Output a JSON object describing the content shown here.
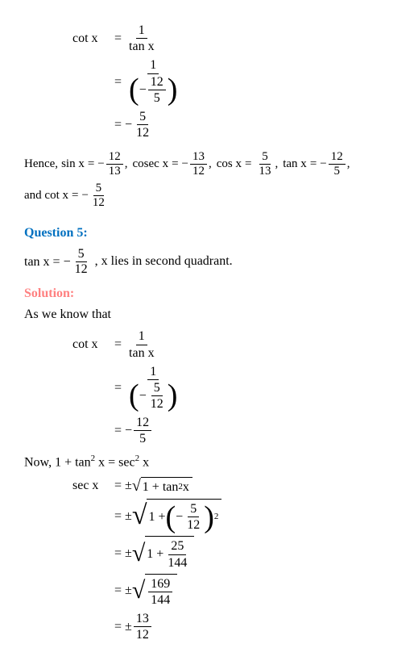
{
  "colors": {
    "text": "#000000",
    "question": "#0070c0",
    "solution": "#ff8080",
    "background": "#ffffff"
  },
  "fonts": {
    "body_family": "Times New Roman",
    "body_size_pt": 12,
    "heading_weight": "bold"
  },
  "block1": {
    "lhs": "cot x",
    "eq": "=",
    "rhs1_num": "1",
    "rhs1_den": "tan x",
    "rhs2_num": "1",
    "rhs2_den_inner_num": "12",
    "rhs2_den_inner_den": "5",
    "rhs2_den_neg": "−",
    "rhs3_neg": "−",
    "rhs3_num": "5",
    "rhs3_den": "12"
  },
  "hence": {
    "label": "Hence,",
    "items": [
      {
        "fn": "sin x",
        "neg": "−",
        "num": "12",
        "den": "13",
        "sep": ","
      },
      {
        "fn": "cosec x",
        "neg": "−",
        "num": "13",
        "den": "12",
        "sep": ","
      },
      {
        "fn": "cos x",
        "neg": "",
        "num": "5",
        "den": "13",
        "sep": ","
      },
      {
        "fn": "tan x",
        "neg": "−",
        "num": "12",
        "den": "5",
        "sep": ","
      },
      {
        "fn": "and cot x",
        "neg": "−",
        "num": "5",
        "den": "12",
        "sep": ""
      }
    ],
    "eq": "="
  },
  "question5": {
    "heading": "Question 5:",
    "tan_lhs": "tan x",
    "eq": "=",
    "neg": "−",
    "num": "5",
    "den": "12",
    "tail": ", x lies in second quadrant."
  },
  "solution": {
    "heading": "Solution:",
    "intro": "As we know that"
  },
  "block2": {
    "lhs": "cot x",
    "eq": "=",
    "rhs1_num": "1",
    "rhs1_den": "tan x",
    "rhs2_num": "1",
    "rhs2_den_inner_num": "5",
    "rhs2_den_inner_den": "12",
    "rhs2_den_neg": "−",
    "rhs3_neg": "−",
    "rhs3_num": "12",
    "rhs3_den": "5"
  },
  "identity": {
    "prefix": "Now, ",
    "lhs": "1 + tan",
    "sup1": "2",
    "mid": " x = sec",
    "sup2": "2",
    "tail": " x"
  },
  "block3": {
    "lhs": "sec x",
    "eq": "=",
    "pm": "±",
    "line1_sqrt": "1 + tan",
    "line1_sup": "2",
    "line1_tail": " x",
    "line2_one": "1 +",
    "line2_inner_neg": "−",
    "line2_inner_num": "5",
    "line2_inner_den": "12",
    "line2_outer_sup": "2",
    "line3_one": "1 +",
    "line3_num": "25",
    "line3_den": "144",
    "line4_num": "169",
    "line4_den": "144",
    "line5_num": "13",
    "line5_den": "12"
  }
}
